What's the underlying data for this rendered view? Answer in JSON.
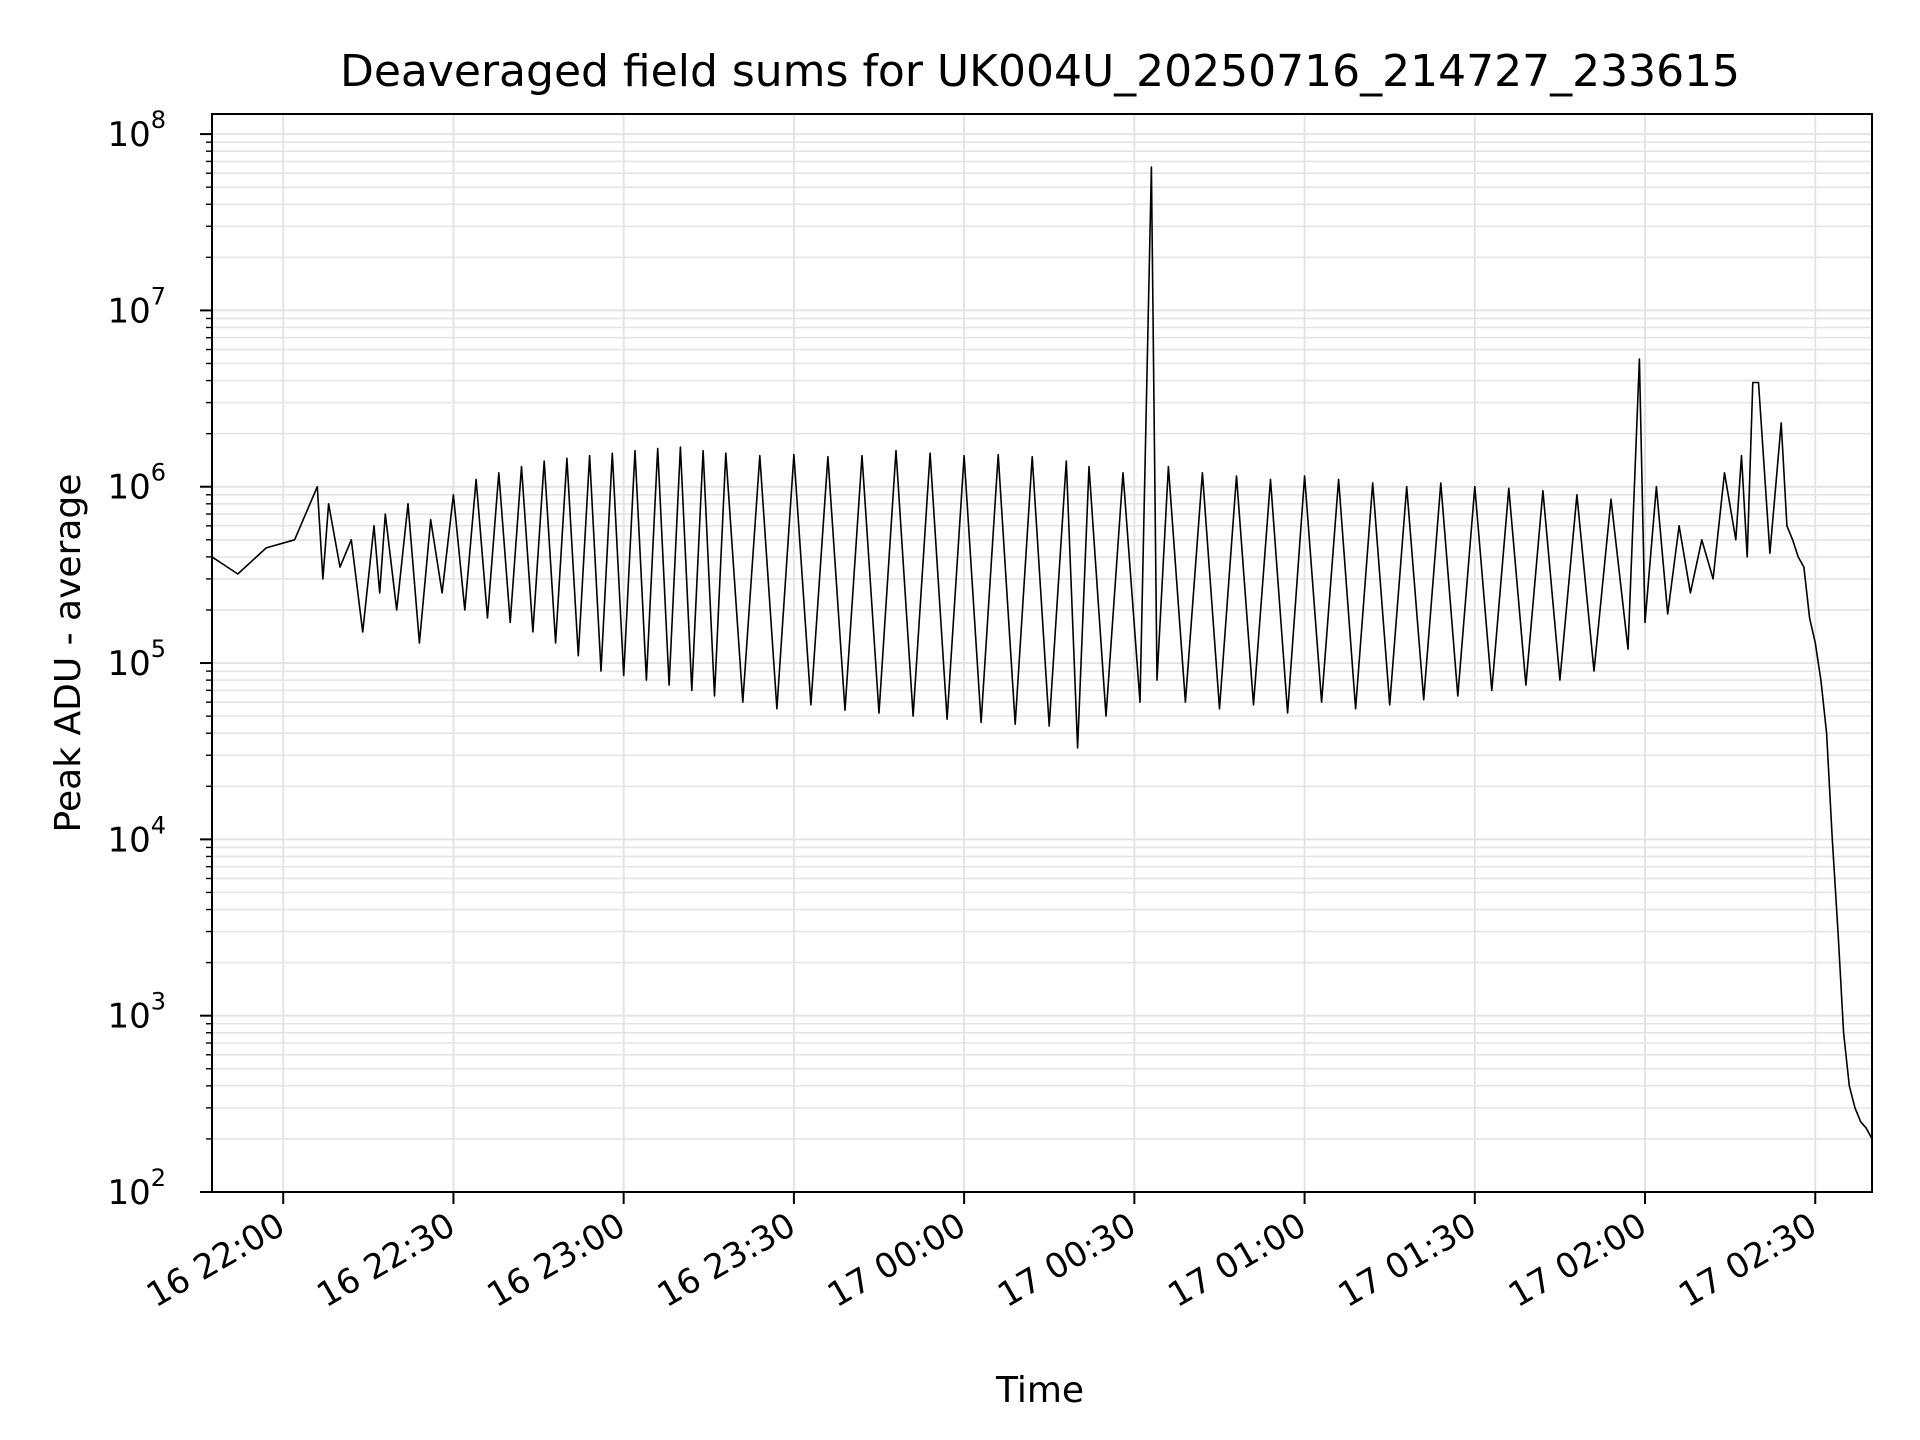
{
  "chart_data": {
    "type": "line",
    "title": "Deaveraged field sums for UK004U_20250716_214727_233615",
    "xlabel": "Time",
    "ylabel": "Peak ADU - average",
    "y_scale": "log",
    "ylim": [
      100,
      130000000
    ],
    "xlim": [
      "2025-07-16T21:47:27",
      "2025-07-17T02:40:00"
    ],
    "grid": true,
    "line_color": "#000000",
    "x_ticks": [
      {
        "label": "16 22:00",
        "value": "2025-07-16T22:00:00"
      },
      {
        "label": "16 22:30",
        "value": "2025-07-16T22:30:00"
      },
      {
        "label": "16 23:00",
        "value": "2025-07-16T23:00:00"
      },
      {
        "label": "16 23:30",
        "value": "2025-07-16T23:30:00"
      },
      {
        "label": "17 00:00",
        "value": "2025-07-17T00:00:00"
      },
      {
        "label": "17 00:30",
        "value": "2025-07-17T00:30:00"
      },
      {
        "label": "17 01:00",
        "value": "2025-07-17T01:00:00"
      },
      {
        "label": "17 01:30",
        "value": "2025-07-17T01:30:00"
      },
      {
        "label": "17 02:00",
        "value": "2025-07-17T02:00:00"
      },
      {
        "label": "17 02:30",
        "value": "2025-07-17T02:30:00"
      }
    ],
    "y_ticks": [
      {
        "base": "10",
        "exp": "2",
        "value": 100
      },
      {
        "base": "10",
        "exp": "3",
        "value": 1000
      },
      {
        "base": "10",
        "exp": "4",
        "value": 10000
      },
      {
        "base": "10",
        "exp": "5",
        "value": 100000
      },
      {
        "base": "10",
        "exp": "6",
        "value": 1000000
      },
      {
        "base": "10",
        "exp": "7",
        "value": 10000000
      },
      {
        "base": "10",
        "exp": "8",
        "value": 100000000
      }
    ],
    "series": [
      {
        "x": [
          "2025-07-16T21:47:27",
          "2025-07-16T21:52:00",
          "2025-07-16T21:57:00",
          "2025-07-16T22:02:00",
          "2025-07-16T22:06:00",
          "2025-07-16T22:07:00",
          "2025-07-16T22:08:00",
          "2025-07-16T22:10:00",
          "2025-07-16T22:12:00",
          "2025-07-16T22:14:00",
          "2025-07-16T22:16:00",
          "2025-07-16T22:17:00",
          "2025-07-16T22:18:00",
          "2025-07-16T22:20:00",
          "2025-07-16T22:22:00",
          "2025-07-16T22:24:00",
          "2025-07-16T22:26:00",
          "2025-07-16T22:28:00",
          "2025-07-16T22:30:00",
          "2025-07-16T22:32:00",
          "2025-07-16T22:34:00",
          "2025-07-16T22:36:00",
          "2025-07-16T22:38:00",
          "2025-07-16T22:40:00",
          "2025-07-16T22:42:00",
          "2025-07-16T22:44:00",
          "2025-07-16T22:46:00",
          "2025-07-16T22:48:00",
          "2025-07-16T22:50:00",
          "2025-07-16T22:52:00",
          "2025-07-16T22:54:00",
          "2025-07-16T22:56:00",
          "2025-07-16T22:58:00",
          "2025-07-16T23:00:00",
          "2025-07-16T23:02:00",
          "2025-07-16T23:04:00",
          "2025-07-16T23:06:00",
          "2025-07-16T23:08:00",
          "2025-07-16T23:10:00",
          "2025-07-16T23:12:00",
          "2025-07-16T23:14:00",
          "2025-07-16T23:16:00",
          "2025-07-16T23:18:00",
          "2025-07-16T23:21:00",
          "2025-07-16T23:24:00",
          "2025-07-16T23:27:00",
          "2025-07-16T23:30:00",
          "2025-07-16T23:33:00",
          "2025-07-16T23:36:00",
          "2025-07-16T23:39:00",
          "2025-07-16T23:42:00",
          "2025-07-16T23:45:00",
          "2025-07-16T23:48:00",
          "2025-07-16T23:51:00",
          "2025-07-16T23:54:00",
          "2025-07-16T23:57:00",
          "2025-07-17T00:00:00",
          "2025-07-17T00:03:00",
          "2025-07-17T00:06:00",
          "2025-07-17T00:09:00",
          "2025-07-17T00:12:00",
          "2025-07-17T00:15:00",
          "2025-07-17T00:18:00",
          "2025-07-17T00:20:00",
          "2025-07-17T00:22:00",
          "2025-07-17T00:25:00",
          "2025-07-17T00:28:00",
          "2025-07-17T00:31:00",
          "2025-07-17T00:33:00",
          "2025-07-17T00:34:00",
          "2025-07-17T00:36:00",
          "2025-07-17T00:39:00",
          "2025-07-17T00:42:00",
          "2025-07-17T00:45:00",
          "2025-07-17T00:48:00",
          "2025-07-17T00:51:00",
          "2025-07-17T00:54:00",
          "2025-07-17T00:57:00",
          "2025-07-17T01:00:00",
          "2025-07-17T01:03:00",
          "2025-07-17T01:06:00",
          "2025-07-17T01:09:00",
          "2025-07-17T01:12:00",
          "2025-07-17T01:15:00",
          "2025-07-17T01:18:00",
          "2025-07-17T01:21:00",
          "2025-07-17T01:24:00",
          "2025-07-17T01:27:00",
          "2025-07-17T01:30:00",
          "2025-07-17T01:33:00",
          "2025-07-17T01:36:00",
          "2025-07-17T01:39:00",
          "2025-07-17T01:42:00",
          "2025-07-17T01:45:00",
          "2025-07-17T01:48:00",
          "2025-07-17T01:51:00",
          "2025-07-17T01:54:00",
          "2025-07-17T01:57:00",
          "2025-07-17T01:59:00",
          "2025-07-17T02:00:00",
          "2025-07-17T02:02:00",
          "2025-07-17T02:04:00",
          "2025-07-17T02:06:00",
          "2025-07-17T02:08:00",
          "2025-07-17T02:10:00",
          "2025-07-17T02:12:00",
          "2025-07-17T02:14:00",
          "2025-07-17T02:16:00",
          "2025-07-17T02:17:00",
          "2025-07-17T02:18:00",
          "2025-07-17T02:19:00",
          "2025-07-17T02:20:00",
          "2025-07-17T02:22:00",
          "2025-07-17T02:24:00",
          "2025-07-17T02:25:00",
          "2025-07-17T02:26:00",
          "2025-07-17T02:27:00",
          "2025-07-17T02:28:00",
          "2025-07-17T02:29:00",
          "2025-07-17T02:30:00",
          "2025-07-17T02:31:00",
          "2025-07-17T02:32:00",
          "2025-07-17T02:33:00",
          "2025-07-17T02:34:00",
          "2025-07-17T02:35:00",
          "2025-07-17T02:36:00",
          "2025-07-17T02:37:00",
          "2025-07-17T02:38:00",
          "2025-07-17T02:39:00",
          "2025-07-17T02:40:00"
        ],
        "y": [
          400000,
          320000,
          450000,
          500000,
          1000000,
          300000,
          800000,
          350000,
          500000,
          150000,
          600000,
          250000,
          700000,
          200000,
          800000,
          130000,
          650000,
          250000,
          900000,
          200000,
          1100000,
          180000,
          1200000,
          170000,
          1300000,
          150000,
          1400000,
          130000,
          1450000,
          110000,
          1500000,
          90000,
          1550000,
          85000,
          1600000,
          80000,
          1650000,
          75000,
          1680000,
          70000,
          1600000,
          65000,
          1550000,
          60000,
          1500000,
          55000,
          1520000,
          58000,
          1480000,
          54000,
          1500000,
          52000,
          1600000,
          50000,
          1550000,
          48000,
          1500000,
          46000,
          1520000,
          45000,
          1480000,
          44000,
          1400000,
          33000,
          1300000,
          50000,
          1200000,
          60000,
          65000000,
          80000,
          1300000,
          60000,
          1200000,
          55000,
          1150000,
          58000,
          1100000,
          52000,
          1150000,
          60000,
          1100000,
          55000,
          1050000,
          58000,
          1000000,
          62000,
          1050000,
          65000,
          1000000,
          70000,
          980000,
          75000,
          950000,
          80000,
          900000,
          90000,
          850000,
          120000,
          5300000,
          170000,
          1000000,
          190000,
          600000,
          250000,
          500000,
          300000,
          1200000,
          500000,
          1500000,
          400000,
          3900000,
          3900000,
          420000,
          2300000,
          600000,
          500000,
          400000,
          350000,
          180000,
          130000,
          80000,
          40000,
          10000,
          3000,
          800,
          400,
          300,
          250,
          230,
          200
        ],
        "note": ""
      }
    ]
  }
}
